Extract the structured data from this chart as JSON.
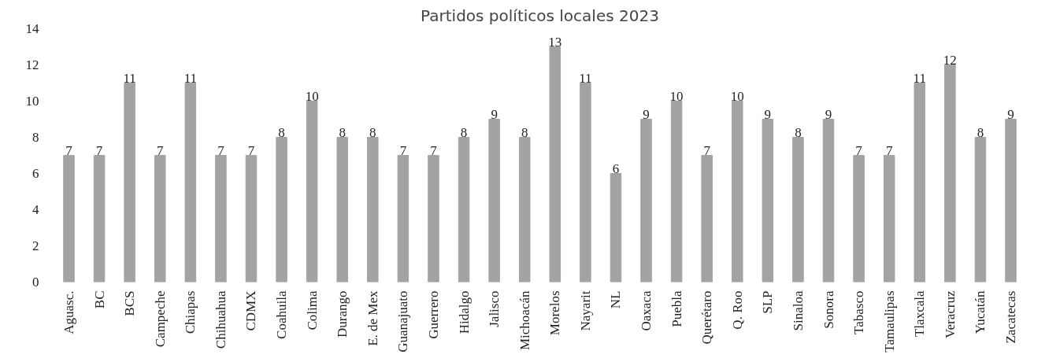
{
  "chart_data": {
    "type": "bar",
    "title": "Partidos políticos locales 2023",
    "categories": [
      "Aguasc.",
      "BC",
      "BCS",
      "Campeche",
      "Chiapas",
      "Chihuahua",
      "CDMX",
      "Coahuila",
      "Colima",
      "Durango",
      "E. de Mex",
      "Guanajuato",
      "Guerrero",
      "Hidalgo",
      "Jalisco",
      "Michoacán",
      "Morelos",
      "Nayarit",
      "NL",
      "Oaxaca",
      "Puebla",
      "Querétaro",
      "Q. Roo",
      "SLP",
      "Sinaloa",
      "Sonora",
      "Tabasco",
      "Tamaulipas",
      "Tlaxcala",
      "Veracruz",
      "Yucatán",
      "Zacatecas"
    ],
    "values": [
      7,
      7,
      11,
      7,
      11,
      7,
      7,
      8,
      10,
      8,
      8,
      7,
      7,
      8,
      9,
      8,
      13,
      11,
      6,
      9,
      10,
      7,
      10,
      9,
      8,
      9,
      7,
      7,
      11,
      12,
      8,
      9
    ],
    "color": "#a3a3a3",
    "ylim": [
      0,
      14
    ],
    "yticks": [
      0,
      2,
      4,
      6,
      8,
      10,
      12,
      14
    ],
    "grid": false,
    "data_labels": true
  }
}
